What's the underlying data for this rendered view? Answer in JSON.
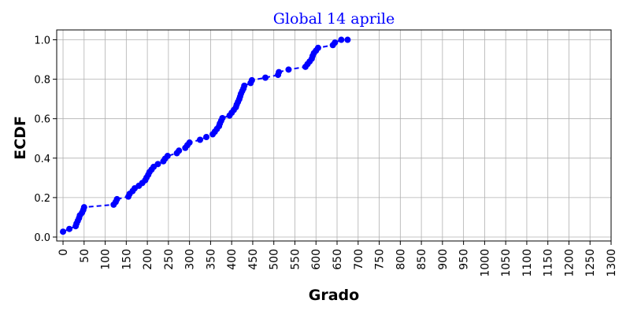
{
  "chart_data": {
    "type": "line",
    "title": "Global 14 aprile",
    "xlabel": "Grado",
    "ylabel": "ECDF",
    "xlim": [
      -15,
      1300
    ],
    "ylim": [
      -0.02,
      1.05
    ],
    "xticks": [
      0,
      50,
      100,
      150,
      200,
      250,
      300,
      350,
      400,
      450,
      500,
      550,
      600,
      650,
      700,
      750,
      800,
      850,
      900,
      950,
      1000,
      1050,
      1100,
      1150,
      1200,
      1250,
      1300
    ],
    "yticks": [
      0.0,
      0.2,
      0.4,
      0.6,
      0.8,
      1.0
    ],
    "ytick_labels": [
      "0.0",
      "0.2",
      "0.4",
      "0.6",
      "0.8",
      "1.0"
    ],
    "grid": true,
    "line_style": "dashed",
    "marker": "circle",
    "color": "#0000ff",
    "series": [
      {
        "x": [
          0,
          15,
          30,
          32,
          35,
          38,
          40,
          45,
          48,
          50,
          120,
          125,
          128,
          155,
          158,
          165,
          170,
          180,
          188,
          195,
          198,
          202,
          205,
          210,
          215,
          225,
          238,
          242,
          248,
          270,
          275,
          290,
          295,
          300,
          325,
          340,
          355,
          360,
          365,
          370,
          372,
          375,
          378,
          395,
          400,
          405,
          410,
          412,
          415,
          418,
          420,
          422,
          425,
          428,
          430,
          445,
          448,
          480,
          510,
          512,
          535,
          575,
          580,
          585,
          590,
          592,
          595,
          600,
          605,
          640,
          645,
          660,
          675
        ],
        "y": [
          0.027,
          0.041,
          0.055,
          0.068,
          0.082,
          0.096,
          0.11,
          0.123,
          0.137,
          0.151,
          0.164,
          0.178,
          0.192,
          0.205,
          0.219,
          0.233,
          0.247,
          0.26,
          0.274,
          0.288,
          0.301,
          0.315,
          0.329,
          0.342,
          0.356,
          0.37,
          0.384,
          0.397,
          0.411,
          0.425,
          0.438,
          0.452,
          0.466,
          0.479,
          0.493,
          0.507,
          0.521,
          0.534,
          0.548,
          0.562,
          0.575,
          0.589,
          0.603,
          0.616,
          0.63,
          0.644,
          0.658,
          0.671,
          0.685,
          0.699,
          0.712,
          0.726,
          0.74,
          0.753,
          0.767,
          0.781,
          0.795,
          0.808,
          0.822,
          0.836,
          0.849,
          0.863,
          0.877,
          0.89,
          0.904,
          0.918,
          0.932,
          0.945,
          0.959,
          0.973,
          0.986,
          1.0,
          1.0
        ]
      }
    ]
  }
}
